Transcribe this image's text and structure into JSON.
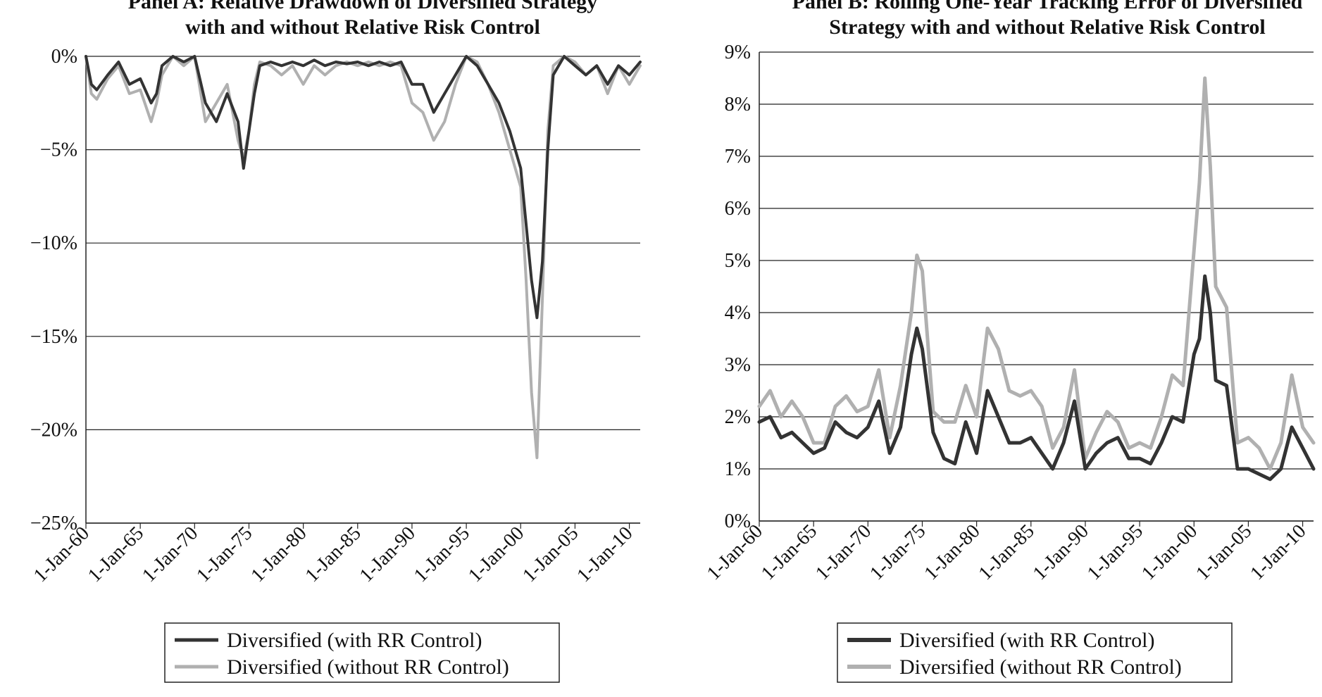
{
  "chart_data": [
    {
      "type": "line",
      "title_lines": [
        "Panel A: Relative Drawdown of Diversified Strategy",
        "with and without Relative Risk Control"
      ],
      "ylim": [
        -25,
        0
      ],
      "y_ticks": [
        0,
        -5,
        -10,
        -15,
        -20,
        -25
      ],
      "y_tick_labels": [
        "0%",
        "−5%",
        "−10%",
        "−15%",
        "−20%",
        "−25%"
      ],
      "xlim": [
        1960,
        2011
      ],
      "x_ticks": [
        1960,
        1965,
        1970,
        1975,
        1980,
        1985,
        1990,
        1995,
        2000,
        2005,
        2010
      ],
      "x_tick_labels": [
        "1-Jan-60",
        "1-Jan-65",
        "1-Jan-70",
        "1-Jan-75",
        "1-Jan-80",
        "1-Jan-85",
        "1-Jan-90",
        "1-Jan-95",
        "1-Jan-00",
        "1-Jan-05",
        "1-Jan-10"
      ],
      "grid": "horizontal",
      "legend_position": "bottom",
      "series": [
        {
          "name": "Diversified (with RR Control)",
          "color": "#333333",
          "x": [
            1960,
            1960.5,
            1961,
            1962,
            1963,
            1964,
            1965,
            1966,
            1966.5,
            1967,
            1968,
            1969,
            1970,
            1971,
            1972,
            1973,
            1974,
            1974.5,
            1975,
            1975.5,
            1976,
            1977,
            1978,
            1979,
            1980,
            1981,
            1982,
            1983,
            1984,
            1985,
            1986,
            1987,
            1988,
            1989,
            1990,
            1991,
            1992,
            1993,
            1994,
            1995,
            1996,
            1997,
            1998,
            1999,
            2000,
            2000.5,
            2001,
            2001.5,
            2002,
            2002.5,
            2003,
            2004,
            2005,
            2006,
            2007,
            2008,
            2009,
            2010,
            2011
          ],
          "values": [
            0,
            -1.5,
            -1.8,
            -1,
            -0.3,
            -1.5,
            -1.2,
            -2.5,
            -2,
            -0.5,
            0,
            -0.3,
            0,
            -2.5,
            -3.5,
            -2,
            -3.5,
            -6,
            -4,
            -2,
            -0.5,
            -0.3,
            -0.5,
            -0.3,
            -0.5,
            -0.2,
            -0.5,
            -0.3,
            -0.4,
            -0.3,
            -0.5,
            -0.3,
            -0.5,
            -0.3,
            -1.5,
            -1.5,
            -3,
            -2,
            -1,
            0,
            -0.5,
            -1.5,
            -2.5,
            -4,
            -6,
            -9,
            -12,
            -14,
            -11,
            -5,
            -1,
            0,
            -0.5,
            -1,
            -0.5,
            -1.5,
            -0.5,
            -1,
            -0.3
          ]
        },
        {
          "name": "Diversified (without RR Control)",
          "color": "#b0b0b0",
          "x": [
            1960,
            1960.5,
            1961,
            1962,
            1963,
            1964,
            1965,
            1966,
            1966.5,
            1967,
            1968,
            1969,
            1970,
            1971,
            1972,
            1973,
            1974,
            1974.5,
            1975,
            1975.5,
            1976,
            1977,
            1978,
            1979,
            1980,
            1981,
            1982,
            1983,
            1984,
            1985,
            1986,
            1987,
            1988,
            1989,
            1990,
            1991,
            1992,
            1993,
            1994,
            1995,
            1996,
            1997,
            1998,
            1999,
            2000,
            2000.5,
            2001,
            2001.5,
            2002,
            2002.5,
            2003,
            2004,
            2005,
            2006,
            2007,
            2008,
            2009,
            2010,
            2011
          ],
          "values": [
            0,
            -2,
            -2.3,
            -1.2,
            -0.5,
            -2,
            -1.8,
            -3.5,
            -2.5,
            -1,
            0,
            -0.5,
            0,
            -3.5,
            -2.5,
            -1.5,
            -4.5,
            -5.5,
            -4,
            -1.5,
            -0.3,
            -0.5,
            -1,
            -0.5,
            -1.5,
            -0.5,
            -1,
            -0.5,
            -0.3,
            -0.5,
            -0.3,
            -0.5,
            -0.3,
            -0.5,
            -2.5,
            -3,
            -4.5,
            -3.5,
            -1.5,
            0,
            -0.3,
            -1.5,
            -3,
            -5,
            -7,
            -12,
            -18,
            -21.5,
            -13,
            -4,
            -0.5,
            0,
            -0.3,
            -1,
            -0.5,
            -2,
            -0.5,
            -1.5,
            -0.5
          ]
        }
      ]
    },
    {
      "type": "line",
      "title_lines": [
        "Panel B: Rolling One-Year Tracking Error of Diversified",
        "Strategy with and without Relative Risk Control"
      ],
      "ylim": [
        0,
        9
      ],
      "y_ticks": [
        0,
        1,
        2,
        3,
        4,
        5,
        6,
        7,
        8,
        9
      ],
      "y_tick_labels": [
        "0%",
        "1%",
        "2%",
        "3%",
        "4%",
        "5%",
        "6%",
        "7%",
        "8%",
        "9%"
      ],
      "xlim": [
        1960,
        2011
      ],
      "x_ticks": [
        1960,
        1965,
        1970,
        1975,
        1980,
        1985,
        1990,
        1995,
        2000,
        2005,
        2010
      ],
      "x_tick_labels": [
        "1-Jan-60",
        "1-Jan-65",
        "1-Jan-70",
        "1-Jan-75",
        "1-Jan-80",
        "1-Jan-85",
        "1-Jan-90",
        "1-Jan-95",
        "1-Jan-00",
        "1-Jan-05",
        "1-Jan-10"
      ],
      "grid": "horizontal",
      "legend_position": "bottom",
      "series": [
        {
          "name": "Diversified (with RR Control)",
          "color": "#333333",
          "x": [
            1960,
            1961,
            1962,
            1963,
            1964,
            1965,
            1966,
            1967,
            1968,
            1969,
            1970,
            1971,
            1972,
            1973,
            1974,
            1974.5,
            1975,
            1976,
            1977,
            1978,
            1979,
            1980,
            1981,
            1982,
            1983,
            1984,
            1985,
            1986,
            1987,
            1988,
            1989,
            1990,
            1991,
            1992,
            1993,
            1994,
            1995,
            1996,
            1997,
            1998,
            1999,
            2000,
            2000.5,
            2001,
            2001.5,
            2002,
            2003,
            2004,
            2005,
            2006,
            2007,
            2008,
            2009,
            2010,
            2011
          ],
          "values": [
            1.9,
            2.0,
            1.6,
            1.7,
            1.5,
            1.3,
            1.4,
            1.9,
            1.7,
            1.6,
            1.8,
            2.3,
            1.3,
            1.8,
            3.2,
            3.7,
            3.3,
            1.7,
            1.2,
            1.1,
            1.9,
            1.3,
            2.5,
            2.0,
            1.5,
            1.5,
            1.6,
            1.3,
            1.0,
            1.5,
            2.3,
            1.0,
            1.3,
            1.5,
            1.6,
            1.2,
            1.2,
            1.1,
            1.5,
            2.0,
            1.9,
            3.2,
            3.5,
            4.7,
            4.0,
            2.7,
            2.6,
            1.0,
            1.0,
            0.9,
            0.8,
            1.0,
            1.8,
            1.4,
            1.0
          ]
        },
        {
          "name": "Diversified (without RR Control)",
          "color": "#b0b0b0",
          "x": [
            1960,
            1961,
            1962,
            1963,
            1964,
            1965,
            1966,
            1967,
            1968,
            1969,
            1970,
            1971,
            1972,
            1973,
            1974,
            1974.5,
            1975,
            1976,
            1977,
            1978,
            1979,
            1980,
            1981,
            1982,
            1983,
            1984,
            1985,
            1986,
            1987,
            1988,
            1989,
            1990,
            1991,
            1992,
            1993,
            1994,
            1995,
            1996,
            1997,
            1998,
            1999,
            2000,
            2000.5,
            2001,
            2001.5,
            2002,
            2003,
            2004,
            2005,
            2006,
            2007,
            2008,
            2009,
            2010,
            2011
          ],
          "values": [
            2.2,
            2.5,
            2.0,
            2.3,
            2.0,
            1.5,
            1.5,
            2.2,
            2.4,
            2.1,
            2.2,
            2.9,
            1.6,
            2.6,
            4.0,
            5.1,
            4.8,
            2.1,
            1.9,
            1.9,
            2.6,
            2.0,
            3.7,
            3.3,
            2.5,
            2.4,
            2.5,
            2.2,
            1.4,
            1.8,
            2.9,
            1.2,
            1.7,
            2.1,
            1.9,
            1.4,
            1.5,
            1.4,
            2.0,
            2.8,
            2.6,
            5.2,
            6.5,
            8.5,
            6.8,
            4.5,
            4.1,
            1.5,
            1.6,
            1.4,
            1.0,
            1.5,
            2.8,
            1.8,
            1.5
          ]
        }
      ]
    }
  ]
}
